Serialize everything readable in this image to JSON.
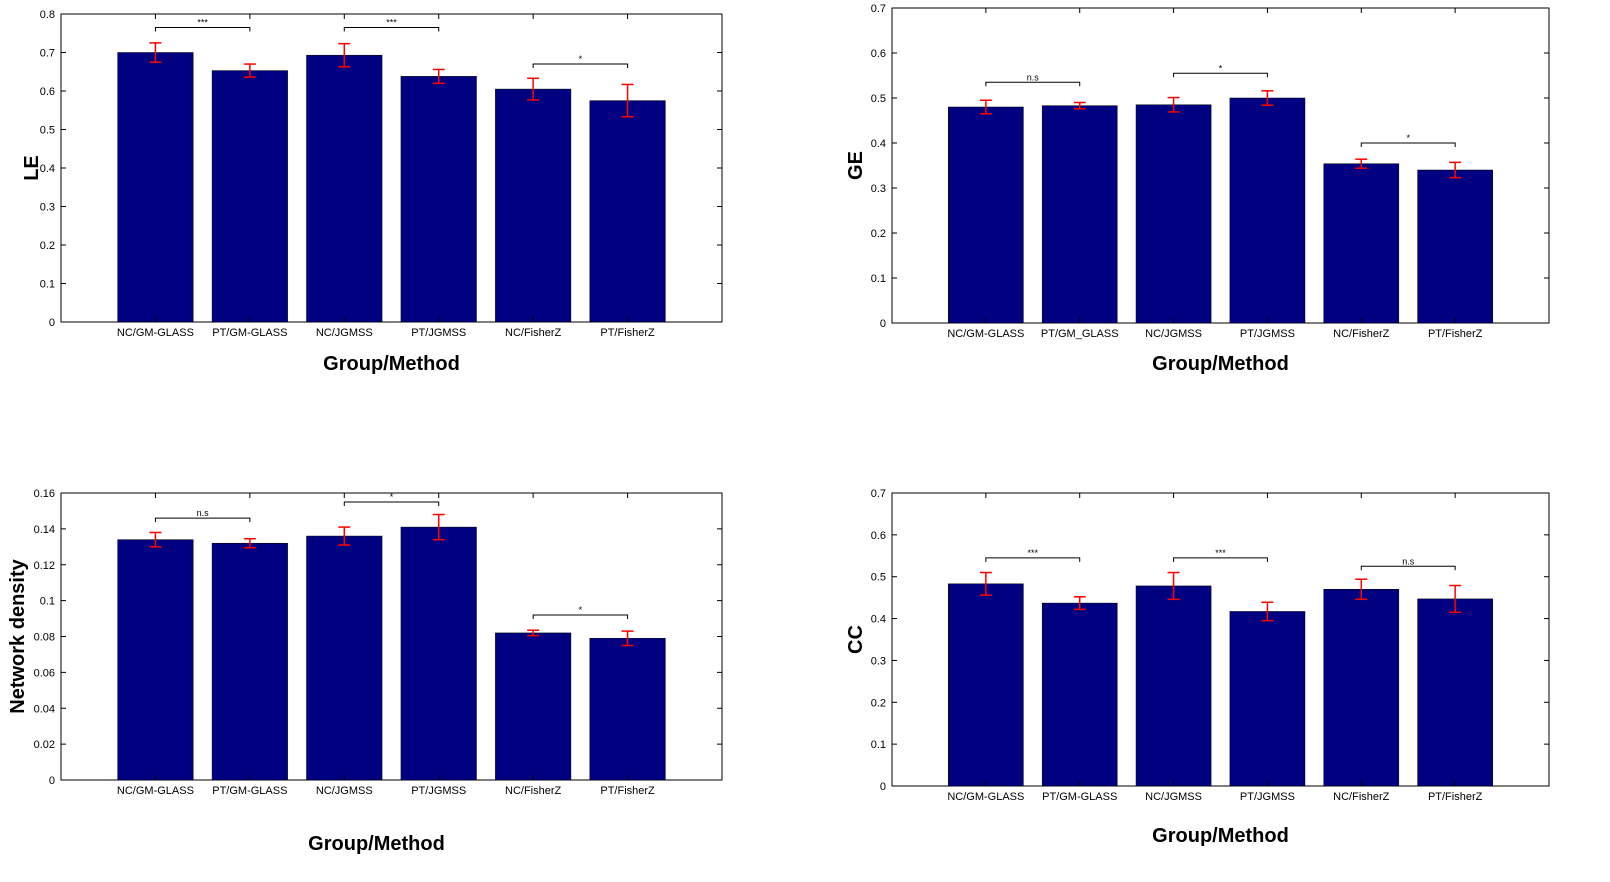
{
  "colors": {
    "bar": "#000080",
    "error": "#ff0000",
    "bracket": "#000000",
    "axis": "#000000"
  },
  "chart_data": [
    {
      "id": "le",
      "type": "bar",
      "title": "",
      "xlabel": "Group/Method",
      "ylabel": "LE",
      "ylim": [
        0,
        0.8
      ],
      "yticks": [
        "0",
        "0.1",
        "0.2",
        "0.3",
        "0.4",
        "0.5",
        "0.6",
        "0.7",
        "0.8"
      ],
      "categories": [
        "NC/GM-GLASS",
        "PT/GM-GLASS",
        "NC/JGMSS",
        "PT/JGMSS",
        "NC/FisherZ",
        "PT/FisherZ"
      ],
      "values": [
        0.7,
        0.653,
        0.693,
        0.638,
        0.605,
        0.575
      ],
      "errors": [
        0.025,
        0.017,
        0.03,
        0.018,
        0.028,
        0.042
      ],
      "significance": [
        {
          "from": 0,
          "to": 1,
          "label": "***",
          "y": 0.765
        },
        {
          "from": 2,
          "to": 3,
          "label": "***",
          "y": 0.765
        },
        {
          "from": 4,
          "to": 5,
          "label": "*",
          "y": 0.67
        }
      ]
    },
    {
      "id": "ge",
      "type": "bar",
      "title": "",
      "xlabel": "Group/Method",
      "ylabel": "GE",
      "ylim": [
        0,
        0.7
      ],
      "yticks": [
        "0",
        "0.1",
        "0.2",
        "0.3",
        "0.4",
        "0.5",
        "0.6",
        "0.7"
      ],
      "categories": [
        "NC/GM-GLASS",
        "PT/GM_GLASS",
        "NC/JGMSS",
        "PT/JGMSS",
        "NC/FisherZ",
        "PT/FisherZ"
      ],
      "values": [
        0.48,
        0.483,
        0.485,
        0.5,
        0.354,
        0.34
      ],
      "errors": [
        0.015,
        0.007,
        0.016,
        0.016,
        0.01,
        0.017
      ],
      "significance": [
        {
          "from": 0,
          "to": 1,
          "label": "n.s",
          "y": 0.535
        },
        {
          "from": 2,
          "to": 3,
          "label": "*",
          "y": 0.555
        },
        {
          "from": 4,
          "to": 5,
          "label": "*",
          "y": 0.4
        }
      ]
    },
    {
      "id": "density",
      "type": "bar",
      "title": "",
      "xlabel": "Group/Method",
      "ylabel": "Network density",
      "ylim": [
        0,
        0.16
      ],
      "yticks": [
        "0",
        "0.02",
        "0.04",
        "0.06",
        "0.08",
        "0.1",
        "0.12",
        "0.14",
        "0.16"
      ],
      "categories": [
        "NC/GM-GLASS",
        "PT/GM-GLASS",
        "NC/JGMSS",
        "PT/JGMSS",
        "NC/FisherZ",
        "PT/FisherZ"
      ],
      "values": [
        0.134,
        0.132,
        0.136,
        0.141,
        0.082,
        0.079
      ],
      "errors": [
        0.004,
        0.0025,
        0.005,
        0.007,
        0.0015,
        0.004
      ],
      "significance": [
        {
          "from": 0,
          "to": 1,
          "label": "n.s",
          "y": 0.146
        },
        {
          "from": 2,
          "to": 3,
          "label": "*",
          "y": 0.155
        },
        {
          "from": 4,
          "to": 5,
          "label": "*",
          "y": 0.092
        }
      ]
    },
    {
      "id": "cc",
      "type": "bar",
      "title": "",
      "xlabel": "Group/Method",
      "ylabel": "CC",
      "ylim": [
        0,
        0.7
      ],
      "yticks": [
        "0",
        "0.1",
        "0.2",
        "0.3",
        "0.4",
        "0.5",
        "0.6",
        "0.7"
      ],
      "categories": [
        "NC/GM-GLASS",
        "PT/GM-GLASS",
        "NC/JGMSS",
        "PT/JGMSS",
        "NC/FisherZ",
        "PT/FisherZ"
      ],
      "values": [
        0.483,
        0.437,
        0.478,
        0.417,
        0.47,
        0.447
      ],
      "errors": [
        0.027,
        0.015,
        0.032,
        0.022,
        0.024,
        0.032
      ],
      "significance": [
        {
          "from": 0,
          "to": 1,
          "label": "***",
          "y": 0.545
        },
        {
          "from": 2,
          "to": 3,
          "label": "***",
          "y": 0.545
        },
        {
          "from": 4,
          "to": 5,
          "label": "n.s",
          "y": 0.525
        }
      ]
    }
  ]
}
